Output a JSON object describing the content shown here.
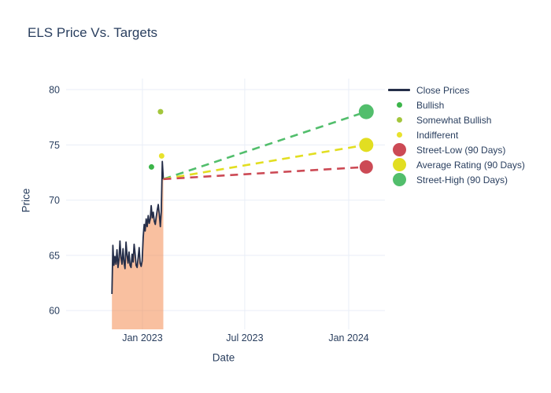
{
  "title": "ELS Price Vs. Targets",
  "colors": {
    "background": "#ffffff",
    "text": "#2a3f5f",
    "grid": "#e9eef7",
    "close_line": "#252e49",
    "close_fill": "rgba(244,130,66,0.5)",
    "bullish": "#3cb54a",
    "somewhat_bullish": "#a3c63c",
    "indifferent": "#e8e22d",
    "street_low": "#cc4a55",
    "average_rating": "#e2de21",
    "street_high": "#52be6c"
  },
  "legend": {
    "items": [
      {
        "label": "Close Prices",
        "type": "line",
        "color": "#252e49"
      },
      {
        "label": "Bullish",
        "type": "dot",
        "color": "#3cb54a"
      },
      {
        "label": "Somewhat Bullish",
        "type": "dot",
        "color": "#a3c63c"
      },
      {
        "label": "Indifferent",
        "type": "dot",
        "color": "#e8e22d"
      },
      {
        "label": "Street-Low (90 Days)",
        "type": "bigdot",
        "color": "#cc4a55"
      },
      {
        "label": "Average Rating (90 Days)",
        "type": "bigdot",
        "color": "#e2de21"
      },
      {
        "label": "Street-High (90 Days)",
        "type": "bigdot",
        "color": "#52be6c"
      }
    ]
  },
  "chart_data": {
    "type": "line",
    "title": "ELS Price Vs. Targets",
    "xlabel": "Date",
    "ylabel": "Price",
    "grid": true,
    "legend_position": "right",
    "x_range": [
      "2022-08-19",
      "2024-03-05"
    ],
    "ylim": [
      58.3,
      81.0
    ],
    "y_ticks": [
      60,
      65,
      70,
      75,
      80
    ],
    "x_ticks": [
      {
        "date": "2023-01-01",
        "label": "Jan 2023"
      },
      {
        "date": "2023-07-01",
        "label": "Jul 2023"
      },
      {
        "date": "2024-01-01",
        "label": "Jan 2024"
      }
    ],
    "close_prices": {
      "name": "Close Prices",
      "fill": "tozeroy",
      "start": "2022-11-08",
      "end": "2023-02-07",
      "values": [
        61.5,
        65.9,
        64.1,
        64.9,
        64.2,
        65.5,
        63.9,
        64.6,
        66.3,
        64.8,
        64.2,
        65.6,
        64.4,
        63.8,
        66.2,
        65.0,
        64.3,
        65.3,
        64.1,
        63.9,
        65.1,
        64.4,
        66.0,
        65.2,
        64.1,
        63.9,
        64.8,
        65.7,
        64.3,
        64.0,
        64.5,
        66.6,
        67.8,
        67.2,
        68.3,
        67.6,
        68.6,
        67.9,
        68.3,
        69.5,
        68.4,
        68.9,
        68.1,
        67.8,
        68.5,
        69.1,
        69.6,
        68.7,
        67.6,
        69.0,
        73.5,
        71.9
      ]
    },
    "ratings": [
      {
        "name": "Bullish",
        "date": "2023-01-17",
        "value": 73,
        "color": "#3cb54a",
        "r": 3.5
      },
      {
        "name": "Somewhat Bullish",
        "date": "2023-02-02",
        "value": 78,
        "color": "#a3c63c",
        "r": 3.5
      },
      {
        "name": "Indifferent",
        "date": "2023-02-04",
        "value": 74,
        "color": "#e8e22d",
        "r": 3.5
      }
    ],
    "projection_from": {
      "date": "2023-02-07",
      "value": 71.9
    },
    "targets": [
      {
        "name": "Street-High (90 Days)",
        "date": "2024-02-01",
        "value": 78,
        "color": "#52be6c",
        "r": 9.5
      },
      {
        "name": "Average Rating (90 Days)",
        "date": "2024-02-01",
        "value": 75,
        "color": "#e2de21",
        "r": 9.0
      },
      {
        "name": "Street-Low (90 Days)",
        "date": "2024-02-01",
        "value": 73,
        "color": "#cc4a55",
        "r": 8.5
      }
    ]
  }
}
